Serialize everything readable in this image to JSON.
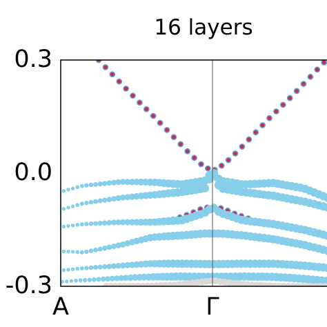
{
  "chart_data": {
    "type": "scatter",
    "title": "16 layers",
    "xlabel": "",
    "ylabel": "",
    "x_ticks": [
      "A",
      "Γ"
    ],
    "x_range": [
      "A",
      "Γ",
      "beyond Γ (cropped)"
    ],
    "ylim": [
      -0.3,
      0.3
    ],
    "y_ticks": [
      "0.3",
      "0.0",
      "-0.3"
    ],
    "vertical_line_at": "Γ",
    "grid": false,
    "legend": "none",
    "colors": {
      "bulk": "#87ceeb",
      "surface": "#c0304a",
      "surface_outline": "#6aa0d8",
      "deep_bands": "#d9d9d9"
    },
    "series": [
      {
        "kind": "surface",
        "x": [
          -0.75,
          -0.62,
          -0.5,
          -0.38,
          -0.27,
          -0.17,
          -0.08,
          0.0,
          0.08,
          0.17,
          0.27,
          0.38,
          0.5,
          0.62,
          0.75
        ],
        "y": [
          0.3,
          0.245,
          0.195,
          0.148,
          0.102,
          0.06,
          0.025,
          0.005,
          0.025,
          0.06,
          0.102,
          0.148,
          0.195,
          0.245,
          0.3
        ]
      },
      {
        "kind": "surface",
        "x": [
          -0.35,
          -0.25,
          -0.15,
          -0.07,
          0.0,
          0.07,
          0.15,
          0.25
        ],
        "y": [
          -0.13,
          -0.122,
          -0.108,
          -0.094,
          -0.088,
          -0.094,
          -0.108,
          -0.122
        ]
      },
      {
        "kind": "bulk",
        "x": [
          -2.0,
          -1.7,
          -1.4,
          -1.1,
          -0.85,
          -0.6,
          -0.4,
          -0.2,
          -0.05,
          0.0,
          0.05,
          0.2,
          0.4,
          0.6,
          0.85,
          1.0
        ],
        "y": [
          -0.25,
          -0.175,
          -0.11,
          -0.06,
          -0.033,
          -0.023,
          -0.024,
          -0.03,
          -0.02,
          0.005,
          -0.02,
          -0.03,
          -0.026,
          -0.04,
          -0.08,
          -0.12
        ]
      },
      {
        "kind": "bulk",
        "x": [
          -2.0,
          -1.7,
          -1.4,
          -1.1,
          -0.85,
          -0.6,
          -0.4,
          -0.2,
          -0.05,
          0.0,
          0.05,
          0.2,
          0.4,
          0.6,
          0.85,
          1.0
        ],
        "y": [
          -0.255,
          -0.2,
          -0.15,
          -0.108,
          -0.08,
          -0.065,
          -0.058,
          -0.05,
          -0.04,
          0.0,
          -0.04,
          -0.05,
          -0.06,
          -0.075,
          -0.1,
          -0.13
        ]
      },
      {
        "kind": "bulk",
        "x": [
          -2.0,
          -1.7,
          -1.4,
          -1.1,
          -0.85,
          -0.6,
          -0.4,
          -0.2,
          -0.05,
          0.0,
          0.05,
          0.2,
          0.4,
          0.6,
          0.85,
          1.0
        ],
        "y": [
          -0.265,
          -0.22,
          -0.178,
          -0.148,
          -0.135,
          -0.13,
          -0.13,
          -0.125,
          -0.105,
          -0.09,
          -0.105,
          -0.125,
          -0.135,
          -0.15,
          -0.175,
          -0.195
        ]
      },
      {
        "kind": "bulk",
        "x": [
          -2.0,
          -1.7,
          -1.4,
          -1.1,
          -0.85,
          -0.6,
          -0.4,
          -0.2,
          -0.05,
          0.0,
          0.05,
          0.2,
          0.4,
          0.6,
          0.85,
          1.0
        ],
        "y": [
          -0.28,
          -0.245,
          -0.215,
          -0.205,
          -0.21,
          -0.19,
          -0.17,
          -0.165,
          -0.16,
          -0.16,
          -0.16,
          -0.165,
          -0.175,
          -0.19,
          -0.215,
          -0.235
        ]
      },
      {
        "kind": "bulk",
        "x": [
          -2.0,
          -1.7,
          -1.4,
          -1.1,
          -0.85,
          -0.6,
          -0.4,
          -0.2,
          -0.05,
          0.0,
          0.05,
          0.2,
          0.4,
          0.6,
          0.85,
          1.0
        ],
        "y": [
          -0.3,
          -0.29,
          -0.275,
          -0.262,
          -0.252,
          -0.245,
          -0.24,
          -0.24,
          -0.241,
          -0.241,
          -0.241,
          -0.24,
          -0.24,
          -0.245,
          -0.255,
          -0.265
        ]
      },
      {
        "kind": "bulk",
        "x": [
          -1.5,
          -1.2,
          -0.9,
          -0.6,
          -0.4,
          -0.2,
          -0.05,
          0.0,
          0.05,
          0.2,
          0.4,
          0.6,
          0.85,
          1.0
        ],
        "y": [
          -0.3,
          -0.295,
          -0.285,
          -0.278,
          -0.275,
          -0.274,
          -0.275,
          -0.275,
          -0.275,
          -0.274,
          -0.275,
          -0.28,
          -0.29,
          -0.298
        ]
      },
      {
        "kind": "deep",
        "x": [
          -0.7,
          -0.45,
          -0.25,
          -0.1,
          0.0,
          0.1,
          0.25,
          0.45,
          0.7,
          1.0
        ],
        "y": [
          -0.3,
          -0.3,
          -0.297,
          -0.29,
          -0.285,
          -0.29,
          -0.297,
          -0.3,
          -0.3,
          -0.3
        ]
      }
    ]
  }
}
